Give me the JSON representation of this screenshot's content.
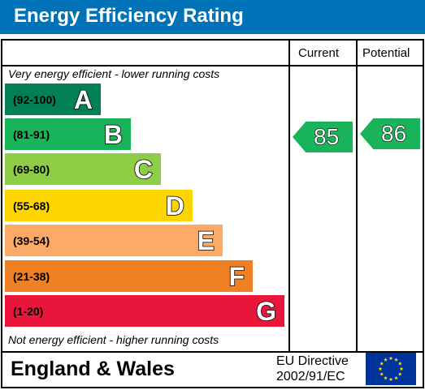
{
  "title": "Energy Efficiency Rating",
  "columns": {
    "current": "Current",
    "potential": "Potential"
  },
  "top_note": "Very energy efficient - lower running costs",
  "bottom_note": "Not energy efficient - higher running costs",
  "bands": [
    {
      "range": "(92-100)",
      "letter": "A",
      "color": "#008054"
    },
    {
      "range": "(81-91)",
      "letter": "B",
      "color": "#19b459"
    },
    {
      "range": "(69-80)",
      "letter": "C",
      "color": "#8dce46"
    },
    {
      "range": "(55-68)",
      "letter": "D",
      "color": "#ffd500"
    },
    {
      "range": "(39-54)",
      "letter": "E",
      "color": "#fcaa65"
    },
    {
      "range": "(21-38)",
      "letter": "F",
      "color": "#ef8023"
    },
    {
      "range": "(1-20)",
      "letter": "G",
      "color": "#e9153b"
    }
  ],
  "current_rating": {
    "value": "85",
    "band": "B",
    "color": "#19b459"
  },
  "potential_rating": {
    "value": "86",
    "band": "B",
    "color": "#19b459"
  },
  "footer": {
    "country": "England & Wales",
    "directive_line1": "EU Directive",
    "directive_line2": "2002/91/EC",
    "flag_icon": "eu-flag-icon"
  },
  "colors": {
    "header": "#0072b8",
    "flag": "#003399",
    "stars": "#ffdd00"
  }
}
